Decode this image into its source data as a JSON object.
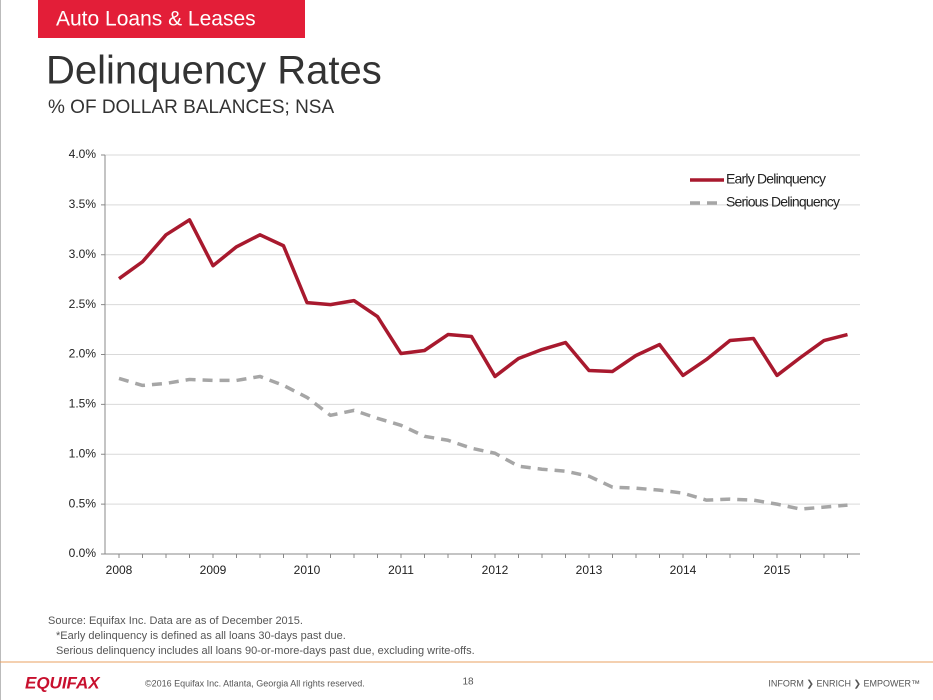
{
  "header": {
    "section": "Auto Loans & Leases"
  },
  "chart_data": {
    "type": "line",
    "title": "Delinquency Rates",
    "subtitle": "% OF DOLLAR BALANCES; NSA",
    "categories": [
      "2008",
      null,
      null,
      null,
      "2009",
      null,
      null,
      null,
      "2010",
      null,
      null,
      null,
      "2011",
      null,
      null,
      null,
      "2012",
      null,
      null,
      null,
      "2013",
      null,
      null,
      null,
      "2014",
      null,
      null,
      null,
      "2015",
      null,
      null,
      null
    ],
    "series": [
      {
        "name": "Early Delinquency",
        "color": "#a8192e",
        "dashed": false,
        "values": [
          2.76,
          2.93,
          3.2,
          3.35,
          2.89,
          3.08,
          3.2,
          3.09,
          2.52,
          2.5,
          2.54,
          2.38,
          2.01,
          2.04,
          2.2,
          2.18,
          1.78,
          1.96,
          2.05,
          2.12,
          1.84,
          1.83,
          1.99,
          2.1,
          1.79,
          1.95,
          2.14,
          2.16,
          1.79,
          1.97,
          2.14,
          2.2
        ]
      },
      {
        "name": "Serious Delinquency",
        "color": "#a6a6a6",
        "dashed": true,
        "values": [
          1.76,
          1.69,
          1.71,
          1.75,
          1.74,
          1.74,
          1.78,
          1.69,
          1.57,
          1.39,
          1.44,
          1.36,
          1.29,
          1.18,
          1.14,
          1.06,
          1.01,
          0.88,
          0.85,
          0.83,
          0.78,
          0.67,
          0.66,
          0.64,
          0.61,
          0.54,
          0.55,
          0.54,
          0.5,
          0.45,
          0.47,
          0.49
        ]
      }
    ],
    "ylim": [
      0,
      4
    ],
    "yticks": [
      {
        "value": 0,
        "label": "0.0%"
      },
      {
        "value": 0.5,
        "label": "0.5%"
      },
      {
        "value": 1,
        "label": "1.0%"
      },
      {
        "value": 1.5,
        "label": "1.5%"
      },
      {
        "value": 2,
        "label": "2.0%"
      },
      {
        "value": 2.5,
        "label": "2.5%"
      },
      {
        "value": 3,
        "label": "3.0%"
      },
      {
        "value": 3.5,
        "label": "3.5%"
      },
      {
        "value": 4,
        "label": "4.0%"
      }
    ],
    "grid": true,
    "legend": "upper right"
  },
  "notes": [
    "Source: Equifax Inc. Data are as of December 2015.",
    "*Early delinquency is defined as all loans 30-days past due.",
    "Serious delinquency includes all loans 90-or-more-days past due, excluding write-offs."
  ],
  "footer": {
    "logo": "EQUIFAX",
    "copyright": "©2016 Equifax Inc. Atlanta, Georgia All rights reserved.",
    "page": "18",
    "tagline": "INFORM ❯ ENRICH ❯ EMPOWER™"
  }
}
